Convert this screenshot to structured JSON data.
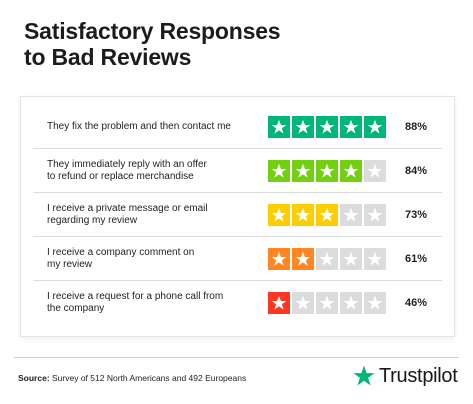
{
  "header": {
    "title_line1": "Satisfactory Responses",
    "title_line2": "to Bad Reviews"
  },
  "star_icon": "star-icon",
  "colors": {
    "empty_star_bg": "#dcdcdc",
    "star_fg": "#ffffff"
  },
  "chart_data": {
    "type": "table",
    "rows": [
      {
        "label_lines": [
          "They fix the problem and then contact me"
        ],
        "stars": 5,
        "percent": "88%",
        "color": "#00b67a"
      },
      {
        "label_lines": [
          "They immediately reply with an offer",
          "to refund or replace merchandise"
        ],
        "stars": 4,
        "percent": "84%",
        "color": "#73cf11"
      },
      {
        "label_lines": [
          "I receive a private message or email",
          "regarding my review"
        ],
        "stars": 3,
        "percent": "73%",
        "color": "#ffce00"
      },
      {
        "label_lines": [
          "I receive a company comment on",
          "my review"
        ],
        "stars": 2,
        "percent": "61%",
        "color": "#ff8622"
      },
      {
        "label_lines": [
          "I receive a request for a phone call from",
          "the company"
        ],
        "stars": 1,
        "percent": "46%",
        "color": "#ff3722"
      }
    ],
    "max_stars": 5
  },
  "footer": {
    "source_label": "Source:",
    "source_text": " Survey of 512 North Americans and 492 Europeans",
    "brand_name": "Trustpilot",
    "brand_icon": "trustpilot-star-icon",
    "brand_color": "#00b67a"
  }
}
